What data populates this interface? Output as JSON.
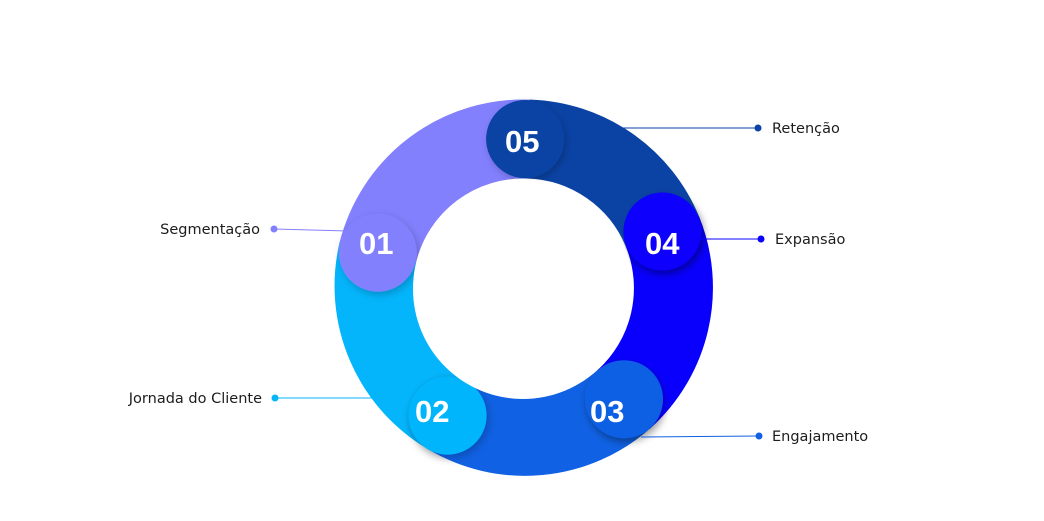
{
  "diagram": {
    "steps": [
      {
        "number": "01",
        "label": "Segmentação",
        "color": "#8380FE"
      },
      {
        "number": "02",
        "label": "Jornada do Cliente",
        "color": "#04B5FC"
      },
      {
        "number": "03",
        "label": "Engajamento",
        "color": "#1061E3"
      },
      {
        "number": "04",
        "label": "Expansão",
        "color": "#0800FC"
      },
      {
        "number": "05",
        "label": "Retenção",
        "color": "#0B43A5"
      }
    ]
  }
}
